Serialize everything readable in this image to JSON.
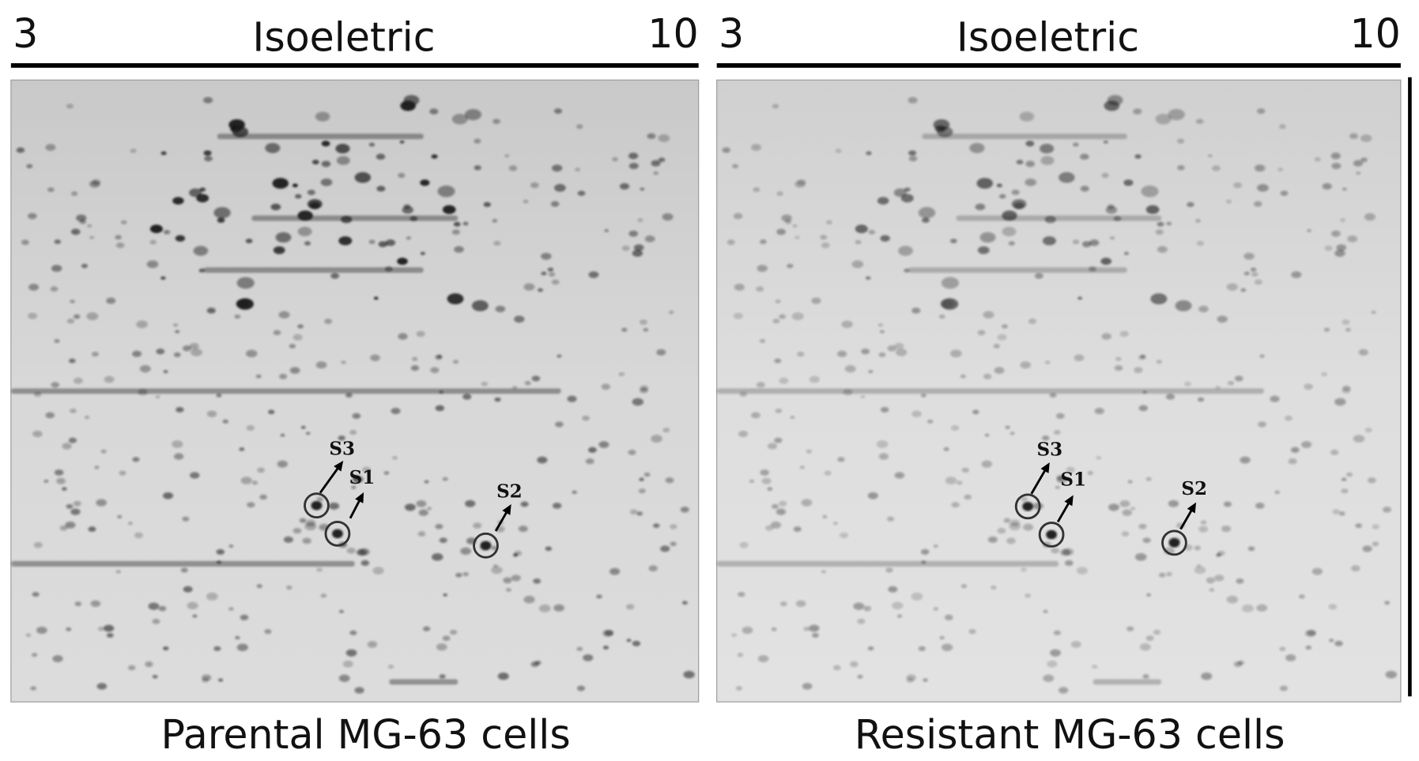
{
  "panels": [
    {
      "ph_start": "3",
      "axis_label": "Isoeletric",
      "ph_end": "10",
      "caption": "Parental MG-63 cells",
      "spots": [
        "S3",
        "S1",
        "S2"
      ]
    },
    {
      "ph_start": "3",
      "axis_label": "Isoeletric",
      "ph_end": "10",
      "caption": "Resistant MG-63 cells",
      "spots": [
        "S3",
        "S1",
        "S2"
      ]
    }
  ]
}
